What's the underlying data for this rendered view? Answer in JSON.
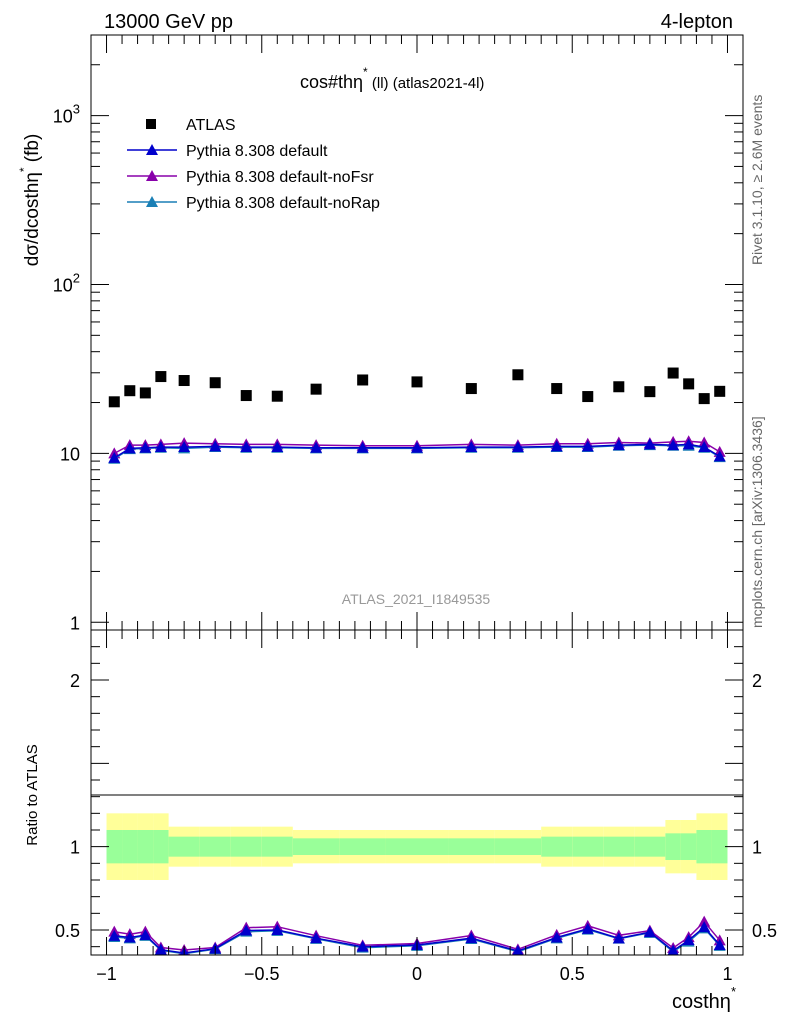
{
  "header": {
    "left": "13000 GeV pp",
    "right": "4-lepton"
  },
  "side": {
    "rivet": "Rivet 3.1.10, ≥ 2.6M events",
    "mcplots": "mcplots.cern.ch [arXiv:1306.3436]"
  },
  "plot": {
    "title_main": "cos#thη",
    "title_sup": "*",
    "title_rest": " (ll) (atlas2021-4l)",
    "watermark": "ATLAS_2021_I1849535",
    "ylabel_main": "dσ/dcosthη",
    "ylabel_sup": "*",
    "ylabel_rest": " (fb)",
    "ratio_ylabel": "Ratio to ATLAS",
    "xlabel_main": "costhη",
    "xlabel_sup": "*"
  },
  "legend": {
    "atlas": "ATLAS",
    "s1": "Pythia 8.308 default",
    "s2": "Pythia 8.308 default-noFsr",
    "s3": "Pythia 8.308 default-noRap"
  },
  "colors": {
    "default": "#0000cc",
    "noFsr": "#8800aa",
    "noRap": "#1a7fb5",
    "band_outer": "#ffff99",
    "band_inner": "#99ff99"
  },
  "chart_data": {
    "type": "scatter",
    "title": "cos#thη* (ll) (atlas2021-4l)",
    "xlabel": "costhη*",
    "ylabel": "dσ/dcosthη* (fb)",
    "xlim": [
      -1.05,
      1.05
    ],
    "ylim": [
      0.9,
      3000
    ],
    "log_y": true,
    "x_ticks": [
      "−1",
      "−0.5",
      "0",
      "0.5",
      "1"
    ],
    "y_ticks": [
      "1",
      "10",
      "10^2",
      "10^3"
    ],
    "bins": [
      -1,
      -0.95,
      -0.9,
      -0.85,
      -0.8,
      -0.7,
      -0.6,
      -0.5,
      -0.4,
      -0.25,
      -0.1,
      0.1,
      0.25,
      0.4,
      0.5,
      0.6,
      0.7,
      0.8,
      0.85,
      0.9,
      0.95,
      1
    ],
    "x": [
      -0.975,
      -0.925,
      -0.875,
      -0.825,
      -0.75,
      -0.65,
      -0.55,
      -0.45,
      -0.325,
      -0.175,
      0.0,
      0.175,
      0.325,
      0.45,
      0.55,
      0.65,
      0.75,
      0.825,
      0.875,
      0.925,
      0.975
    ],
    "series": [
      {
        "name": "ATLAS",
        "values": [
          20.2,
          23.5,
          22.8,
          28.5,
          27.0,
          26.2,
          22.0,
          21.8,
          24.0,
          27.2,
          26.5,
          24.2,
          29.2,
          24.2,
          21.7,
          24.8,
          23.2,
          29.9,
          25.8,
          21.1,
          23.3
        ]
      },
      {
        "name": "Pythia 8.308 default",
        "values": [
          9.4,
          10.7,
          10.8,
          10.9,
          10.9,
          11.0,
          10.9,
          10.9,
          10.8,
          10.8,
          10.8,
          10.9,
          10.9,
          11.0,
          11.0,
          11.2,
          11.3,
          11.2,
          11.3,
          10.9,
          9.6
        ]
      },
      {
        "name": "Pythia 8.308 default-noFsr",
        "values": [
          10.0,
          11.2,
          11.2,
          11.3,
          11.5,
          11.4,
          11.3,
          11.3,
          11.2,
          11.1,
          11.1,
          11.3,
          11.2,
          11.4,
          11.4,
          11.6,
          11.5,
          11.7,
          11.8,
          11.6,
          10.2
        ]
      },
      {
        "name": "Pythia 8.308 default-noRap",
        "values": [
          9.3,
          10.6,
          10.7,
          10.8,
          10.7,
          10.9,
          10.8,
          10.8,
          10.7,
          10.7,
          10.7,
          10.8,
          10.8,
          10.9,
          10.9,
          11.1,
          11.2,
          11.1,
          11.1,
          10.8,
          9.5
        ]
      }
    ],
    "ratio": {
      "ylabel": "Ratio to ATLAS",
      "ylim": [
        0.35,
        2.3
      ],
      "y_ticks": [
        "0.5",
        "1",
        "2"
      ],
      "band_inner": [
        0.1,
        0.1,
        0.1,
        0.1,
        0.06,
        0.06,
        0.06,
        0.06,
        0.05,
        0.05,
        0.05,
        0.05,
        0.05,
        0.06,
        0.06,
        0.06,
        0.06,
        0.08,
        0.08,
        0.1,
        0.1
      ],
      "band_outer": [
        0.2,
        0.2,
        0.2,
        0.2,
        0.12,
        0.12,
        0.12,
        0.12,
        0.1,
        0.1,
        0.1,
        0.1,
        0.1,
        0.12,
        0.12,
        0.12,
        0.12,
        0.16,
        0.16,
        0.2,
        0.2
      ],
      "series": [
        {
          "name": "Pythia 8.308 default",
          "values": [
            0.465,
            0.455,
            0.47,
            0.382,
            0.362,
            0.388,
            0.497,
            0.5,
            0.451,
            0.4,
            0.41,
            0.451,
            0.374,
            0.455,
            0.507,
            0.45,
            0.487,
            0.376,
            0.439,
            0.517,
            0.41
          ]
        },
        {
          "name": "Pythia 8.308 default-noFsr",
          "values": [
            0.49,
            0.475,
            0.49,
            0.395,
            0.38,
            0.395,
            0.514,
            0.52,
            0.466,
            0.408,
            0.419,
            0.467,
            0.384,
            0.471,
            0.525,
            0.468,
            0.496,
            0.392,
            0.457,
            0.55,
            0.438
          ]
        },
        {
          "name": "Pythia 8.308 default-noRap",
          "values": [
            0.458,
            0.45,
            0.465,
            0.378,
            0.358,
            0.385,
            0.49,
            0.495,
            0.447,
            0.394,
            0.405,
            0.446,
            0.37,
            0.45,
            0.502,
            0.448,
            0.483,
            0.37,
            0.43,
            0.51,
            0.405
          ]
        }
      ]
    }
  }
}
